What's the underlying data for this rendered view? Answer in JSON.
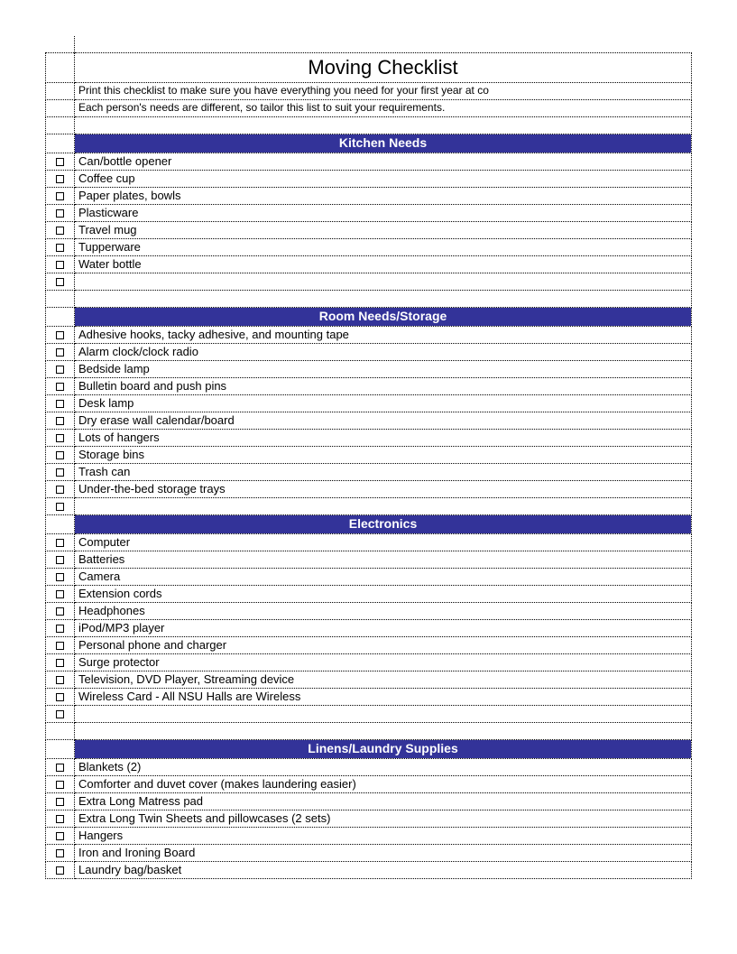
{
  "title": "Moving Checklist",
  "intro": [
    "Print this checklist to make sure you have everything you need for your first year at co",
    "Each person's needs are different, so tailor this list to suit your requirements."
  ],
  "colors": {
    "section_bg": "#333399",
    "section_text": "#ffffff",
    "border": "#000000"
  },
  "sections": [
    {
      "title": "Kitchen Needs",
      "leading_checkbox": false,
      "items": [
        "Can/bottle opener",
        "Coffee cup",
        "Paper plates, bowls",
        "Plasticware",
        "Travel mug",
        "Tupperware",
        "Water bottle"
      ],
      "trailing_blank": true
    },
    {
      "title": "Room Needs/Storage",
      "leading_checkbox": false,
      "items": [
        "Adhesive hooks, tacky adhesive, and mounting tape",
        "Alarm clock/clock radio",
        "Bedside lamp",
        "Bulletin board and push pins",
        "Desk lamp",
        "Dry erase wall calendar/board",
        "Lots of hangers",
        "Storage bins",
        "Trash can",
        "Under-the-bed storage trays"
      ],
      "trailing_blank": false
    },
    {
      "title": "Electronics",
      "leading_checkbox": true,
      "items": [
        "Computer",
        "Batteries",
        "Camera",
        "Extension cords",
        "Headphones",
        "iPod/MP3 player",
        "Personal phone and charger",
        "Surge protector",
        "Television, DVD Player, Streaming device",
        "Wireless Card - All NSU Halls are Wireless"
      ],
      "trailing_blank": true
    },
    {
      "title": "Linens/Laundry Supplies",
      "leading_checkbox": false,
      "items": [
        "Blankets (2)",
        "Comforter and duvet cover (makes laundering easier)",
        "Extra Long Matress pad",
        "Extra Long Twin Sheets and pillowcases (2 sets)",
        "Hangers",
        "Iron and Ironing Board",
        "Laundry bag/basket"
      ],
      "trailing_blank": false
    }
  ]
}
